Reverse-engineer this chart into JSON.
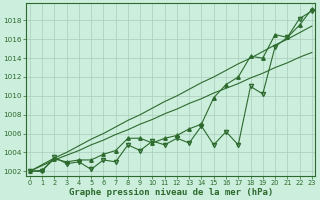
{
  "hours": [
    0,
    1,
    2,
    3,
    4,
    5,
    6,
    7,
    8,
    9,
    10,
    11,
    12,
    13,
    14,
    15,
    16,
    17,
    18,
    19,
    20,
    21,
    22,
    23
  ],
  "pressure_main": [
    1002.0,
    1002.1,
    1003.3,
    1003.0,
    1003.2,
    1003.2,
    1003.8,
    1004.2,
    1005.5,
    1005.5,
    1005.0,
    1005.5,
    1005.8,
    1006.5,
    1007.0,
    1009.8,
    1011.2,
    1012.0,
    1014.2,
    1014.0,
    1016.5,
    1016.2,
    1017.5,
    1019.2
  ],
  "pressure_jagged": [
    1002.0,
    1002.0,
    1003.5,
    1002.8,
    1003.0,
    1002.2,
    1003.2,
    1003.0,
    1004.8,
    1004.2,
    1005.2,
    1004.8,
    1005.5,
    1005.0,
    1006.8,
    1004.8,
    1006.2,
    1004.8,
    1011.0,
    1010.2,
    1015.2,
    1016.2,
    1018.2,
    1019.0
  ],
  "pressure_trend1": [
    1002.0,
    1002.6,
    1003.2,
    1003.7,
    1004.2,
    1004.8,
    1005.3,
    1005.9,
    1006.4,
    1007.0,
    1007.5,
    1008.1,
    1008.6,
    1009.2,
    1009.7,
    1010.3,
    1010.8,
    1011.3,
    1011.9,
    1012.4,
    1013.0,
    1013.5,
    1014.1,
    1014.6
  ],
  "pressure_trend2": [
    1002.0,
    1002.7,
    1003.4,
    1004.0,
    1004.7,
    1005.4,
    1006.0,
    1006.7,
    1007.4,
    1008.0,
    1008.7,
    1009.4,
    1010.0,
    1010.7,
    1011.4,
    1012.0,
    1012.7,
    1013.4,
    1014.0,
    1014.7,
    1015.4,
    1016.0,
    1016.7,
    1017.4
  ],
  "line_color": "#2d6a2d",
  "bg_color": "#cceedd",
  "grid_color": "#aaccbb",
  "xlabel": "Graphe pression niveau de la mer (hPa)",
  "ylim": [
    1001.5,
    1019.8
  ],
  "xlim": [
    -0.3,
    23.3
  ],
  "yticks": [
    1002,
    1004,
    1006,
    1008,
    1010,
    1012,
    1014,
    1016,
    1018
  ],
  "xticks": [
    0,
    1,
    2,
    3,
    4,
    5,
    6,
    7,
    8,
    9,
    10,
    11,
    12,
    13,
    14,
    15,
    16,
    17,
    18,
    19,
    20,
    21,
    22,
    23
  ],
  "marker_size": 3,
  "line_width": 0.8
}
